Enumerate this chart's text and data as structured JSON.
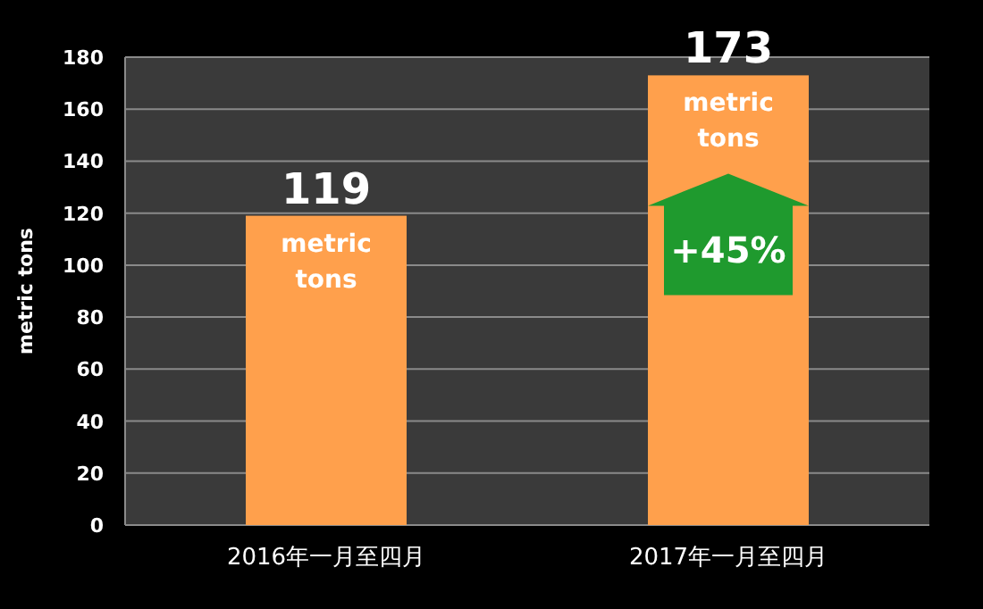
{
  "chart_data": {
    "type": "bar",
    "ylabel": "metric tons",
    "categories": [
      "2016年一月至四月",
      "2017年一月至四月"
    ],
    "values": [
      119,
      173
    ],
    "color": "#ffa04c",
    "ylim": [
      0,
      180
    ],
    "yticks": [
      0,
      20,
      40,
      60,
      80,
      100,
      120,
      140,
      160,
      180
    ],
    "grid": "y",
    "data_labels": true,
    "annotations": [
      {
        "text": "metric tons",
        "x": "2016年一月至四月",
        "y": 119
      },
      {
        "text": "metric tons",
        "x": "2017年一月至四月",
        "y": 173
      },
      "+45%"
    ]
  }
}
